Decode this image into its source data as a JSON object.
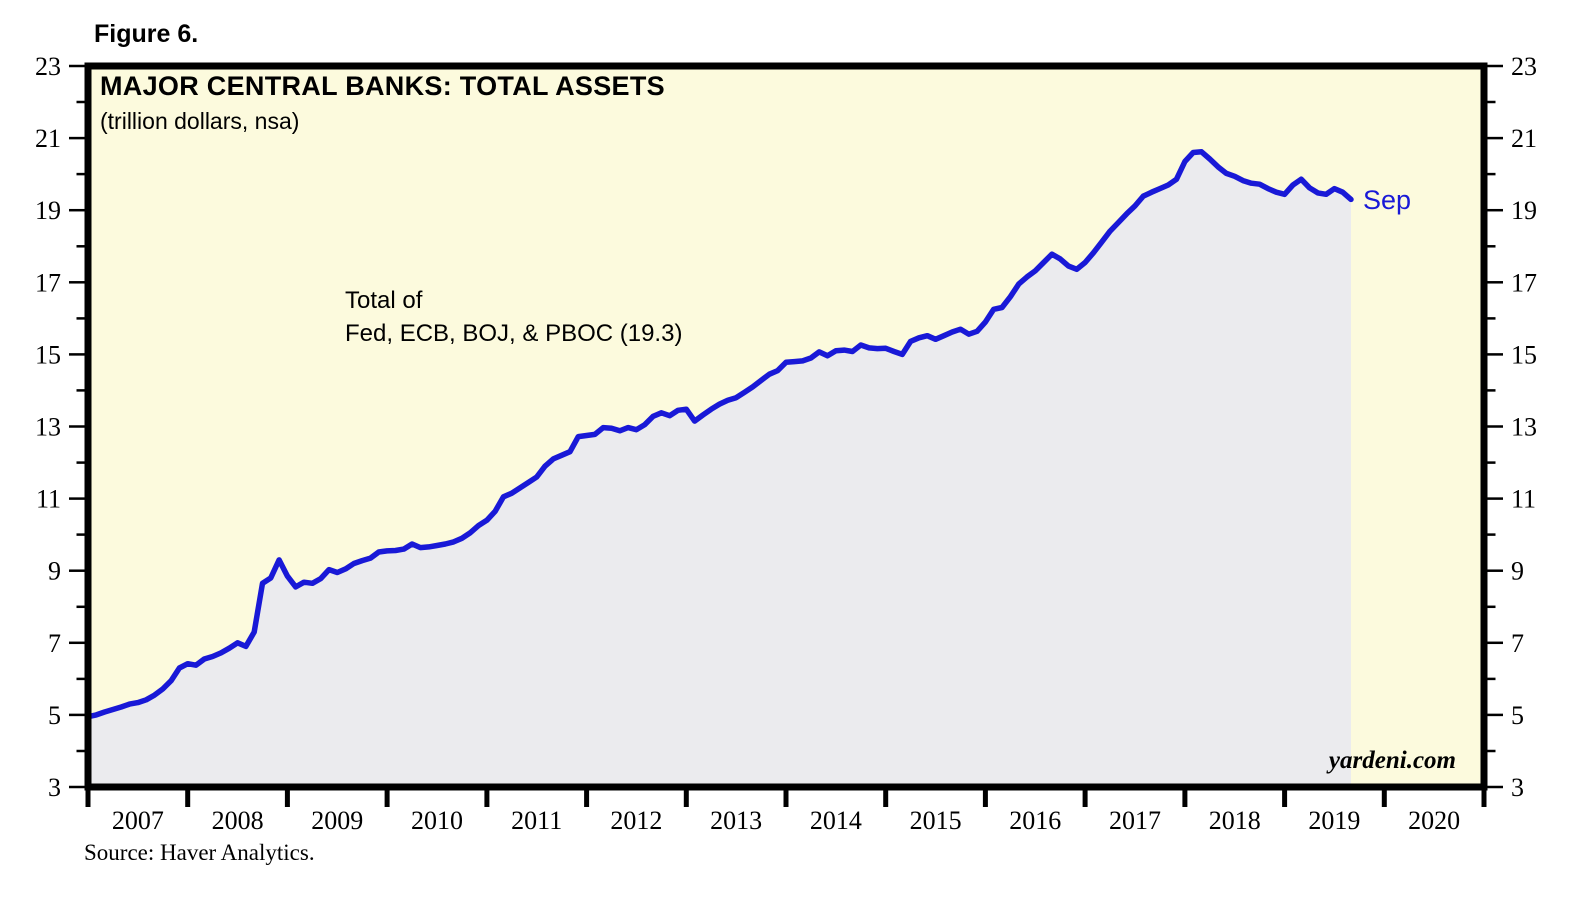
{
  "figure_label": "Figure 6.",
  "source_note": "Source: Haver Analytics.",
  "watermark": "yardeni.com",
  "colors": {
    "plot_background": "#fcfadd",
    "area_fill": "#ebebee",
    "line": "#1919d7",
    "axis": "#000000",
    "text": "#000000",
    "sep_label": "#1919d7"
  },
  "chart_data": {
    "type": "area",
    "title": "MAJOR CENTRAL BANKS: TOTAL ASSETS",
    "subtitle": "(trillion dollars, nsa)",
    "annotation": {
      "line1": "Total of",
      "line2": "Fed, ECB, BOJ, & PBOC (19.3)"
    },
    "series_name": "Total of Fed, ECB, BOJ, & PBOC",
    "latest_point_label": "Sep",
    "latest_value": 19.3,
    "frequency": "monthly",
    "start": "2007-01",
    "end": "2019-09",
    "xlim": [
      2007,
      2021
    ],
    "ylim": [
      3,
      23
    ],
    "y_ticks_labeled": [
      3,
      5,
      7,
      9,
      11,
      13,
      15,
      17,
      19,
      21,
      23
    ],
    "y_ticks_minor": [
      4,
      6,
      8,
      10,
      12,
      14,
      16,
      18,
      20,
      22
    ],
    "x_year_labels": [
      "2007",
      "2008",
      "2009",
      "2010",
      "2011",
      "2012",
      "2013",
      "2014",
      "2015",
      "2016",
      "2017",
      "2018",
      "2019",
      "2020"
    ],
    "grid": false,
    "legend": "none",
    "values": [
      4.95,
      5.0,
      5.08,
      5.15,
      5.22,
      5.3,
      5.34,
      5.42,
      5.55,
      5.72,
      5.95,
      6.3,
      6.42,
      6.38,
      6.55,
      6.62,
      6.72,
      6.85,
      7.0,
      6.9,
      7.3,
      8.65,
      8.8,
      9.3,
      8.85,
      8.55,
      8.68,
      8.65,
      8.78,
      9.03,
      8.95,
      9.05,
      9.2,
      9.28,
      9.35,
      9.52,
      9.55,
      9.56,
      9.6,
      9.74,
      9.64,
      9.66,
      9.7,
      9.74,
      9.8,
      9.9,
      10.05,
      10.25,
      10.4,
      10.65,
      11.05,
      11.15,
      11.3,
      11.45,
      11.6,
      11.9,
      12.1,
      12.2,
      12.3,
      12.72,
      12.75,
      12.78,
      12.97,
      12.95,
      12.88,
      12.97,
      12.91,
      13.05,
      13.28,
      13.38,
      13.3,
      13.45,
      13.48,
      13.15,
      13.32,
      13.48,
      13.62,
      13.73,
      13.8,
      13.95,
      14.1,
      14.28,
      14.45,
      14.55,
      14.78,
      14.8,
      14.82,
      14.9,
      15.07,
      14.96,
      15.1,
      15.12,
      15.08,
      15.26,
      15.18,
      15.16,
      15.17,
      15.08,
      15.0,
      15.36,
      15.46,
      15.52,
      15.42,
      15.52,
      15.62,
      15.7,
      15.56,
      15.64,
      15.9,
      16.25,
      16.3,
      16.6,
      16.95,
      17.15,
      17.32,
      17.55,
      17.78,
      17.65,
      17.45,
      17.36,
      17.55,
      17.82,
      18.12,
      18.42,
      18.66,
      18.9,
      19.12,
      19.39,
      19.5,
      19.6,
      19.7,
      19.86,
      20.35,
      20.6,
      20.62,
      20.42,
      20.2,
      20.02,
      19.94,
      19.82,
      19.75,
      19.72,
      19.6,
      19.5,
      19.44,
      19.7,
      19.86,
      19.62,
      19.48,
      19.44,
      19.6,
      19.5,
      19.3
    ]
  }
}
